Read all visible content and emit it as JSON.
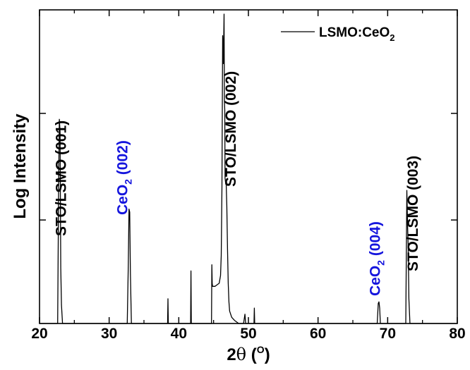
{
  "chart_data": {
    "type": "line",
    "title": "",
    "xlabel": {
      "prefix": "2",
      "theta": "θ",
      "open": " (",
      "sup": "O",
      "close": ")"
    },
    "ylabel": "Log Intensity",
    "xlim": [
      20,
      80
    ],
    "xticks": [
      20,
      30,
      40,
      50,
      60,
      70,
      80
    ],
    "ylim": [
      0,
      1
    ],
    "yscale": "log",
    "grid": false,
    "legend": {
      "position": "top-right",
      "entries": [
        {
          "main": "LSMO:CeO",
          "sub": "2"
        }
      ]
    },
    "series": [
      {
        "name": "LSMO:CeO2",
        "color": "#000000",
        "x": [
          20.0,
          22.6,
          22.75,
          22.85,
          22.95,
          23.05,
          23.15,
          23.3,
          32.6,
          32.75,
          32.85,
          32.95,
          33.05,
          33.2,
          38.4,
          38.45,
          38.5,
          41.7,
          41.75,
          41.8,
          44.7,
          44.75,
          44.8,
          44.85,
          44.95,
          45.2,
          45.5,
          45.8,
          46.0,
          46.1,
          46.2,
          46.3,
          46.4,
          46.5,
          46.55,
          46.6,
          46.65,
          46.7,
          46.75,
          46.8,
          46.9,
          47.0,
          47.1,
          47.2,
          47.3,
          47.6,
          48.0,
          48.6,
          49.3,
          49.5,
          49.6,
          50.8,
          50.85,
          50.9,
          68.5,
          68.65,
          68.75,
          68.85,
          68.95,
          72.6,
          72.75,
          72.85,
          72.95,
          73.05,
          73.2,
          80.0
        ],
        "y": [
          0.0,
          0.0,
          0.45,
          0.66,
          0.62,
          0.18,
          0.06,
          0.0,
          0.0,
          0.19,
          0.37,
          0.36,
          0.16,
          0.0,
          0.0,
          0.08,
          0.0,
          0.0,
          0.17,
          0.0,
          0.0,
          0.19,
          0.13,
          0.12,
          0.12,
          0.12,
          0.125,
          0.13,
          0.155,
          0.22,
          0.44,
          0.93,
          0.84,
          1.0,
          0.72,
          0.69,
          0.47,
          0.46,
          0.45,
          0.46,
          0.38,
          0.24,
          0.13,
          0.07,
          0.04,
          0.02,
          0.01,
          0.0,
          0.0,
          0.03,
          0.0,
          0.0,
          0.05,
          0.0,
          0.0,
          0.065,
          0.07,
          0.05,
          0.0,
          0.0,
          0.43,
          0.32,
          0.25,
          0.08,
          0.0,
          0.0
        ]
      }
    ],
    "annotations": [
      {
        "x": 23.8,
        "main": "STO/LSMO (001)",
        "sub": "",
        "tail": "",
        "color": "#000000"
      },
      {
        "x": 32.6,
        "main": "CeO",
        "sub": "2",
        "tail": " (002)",
        "color": "#1515dd"
      },
      {
        "x": 48.2,
        "main": "STO/LSMO (002)",
        "sub": "",
        "tail": "",
        "color": "#000000"
      },
      {
        "x": 68.9,
        "main": "CeO",
        "sub": "2",
        "tail": " (004)",
        "color": "#1515dd"
      },
      {
        "x": 74.3,
        "main": "STO/LSMO (003)",
        "sub": "",
        "tail": "",
        "color": "#000000"
      }
    ]
  }
}
